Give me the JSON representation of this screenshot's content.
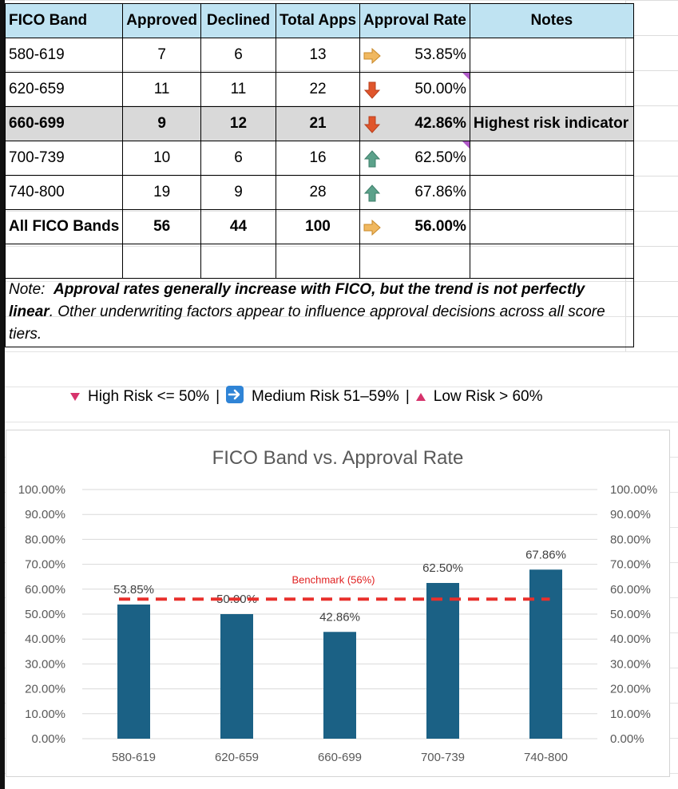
{
  "table": {
    "headers": [
      "FICO Band",
      "Approved",
      "Declined",
      "Total Apps",
      "Approval Rate",
      "Notes"
    ],
    "rows": [
      {
        "band": "580-619",
        "approved": "7",
        "declined": "6",
        "total": "13",
        "rate": "53.85%",
        "arrow": "right",
        "note": "",
        "comment": false
      },
      {
        "band": "620-659",
        "approved": "11",
        "declined": "11",
        "total": "22",
        "rate": "50.00%",
        "arrow": "down",
        "note": "",
        "comment": true
      },
      {
        "band": "660-699",
        "approved": "9",
        "declined": "12",
        "total": "21",
        "rate": "42.86%",
        "arrow": "down",
        "note": "Highest risk indicator",
        "comment": false
      },
      {
        "band": "700-739",
        "approved": "10",
        "declined": "6",
        "total": "16",
        "rate": "62.50%",
        "arrow": "up",
        "note": "",
        "comment": true
      },
      {
        "band": "740-800",
        "approved": "19",
        "declined": "9",
        "total": "28",
        "rate": "67.86%",
        "arrow": "up",
        "note": "",
        "comment": false
      },
      {
        "band": "All FICO Bands",
        "approved": "56",
        "declined": "44",
        "total": "100",
        "rate": "56.00%",
        "arrow": "right",
        "note": "",
        "comment": false
      }
    ],
    "note_prefix": "Note:",
    "note_bold": "Approval rates generally increase with FICO, but the trend is not perfectly linear",
    "note_rest": ". Other underwriting factors appear to influence approval decisions across all score tiers."
  },
  "legend": {
    "high": "High Risk <= 50%",
    "medium": "Medium Risk 51–59%",
    "low": "Low Risk > 60%",
    "separator": "|"
  },
  "colors": {
    "bar": "#1b6185",
    "benchmark": "#e8302c",
    "header_fill": "#bfe3f2",
    "highlight_row": "#d9d9d9",
    "arrow_up": "#5ba18a",
    "arrow_down": "#e0552b",
    "arrow_right": "#f0b860"
  },
  "chart_data": {
    "type": "bar",
    "title": "FICO Band vs. Approval Rate",
    "categories": [
      "580-619",
      "620-659",
      "660-699",
      "700-739",
      "740-800"
    ],
    "values": [
      53.85,
      50.0,
      42.86,
      62.5,
      67.86
    ],
    "data_labels": [
      "53.85%",
      "50.00%",
      "42.86%",
      "62.50%",
      "67.86%"
    ],
    "ylim": [
      0,
      100
    ],
    "yticks": [
      "0.00%",
      "10.00%",
      "20.00%",
      "30.00%",
      "40.00%",
      "50.00%",
      "60.00%",
      "70.00%",
      "80.00%",
      "90.00%",
      "100.00%"
    ],
    "secondary_yticks": [
      "0.00%",
      "10.00%",
      "20.00%",
      "30.00%",
      "40.00%",
      "50.00%",
      "60.00%",
      "70.00%",
      "80.00%",
      "90.00%",
      "100.00%"
    ],
    "benchmark": {
      "value": 56,
      "label": "Benchmark (56%)",
      "style": "dashed"
    },
    "grid": true,
    "xlabel": "",
    "ylabel": ""
  }
}
